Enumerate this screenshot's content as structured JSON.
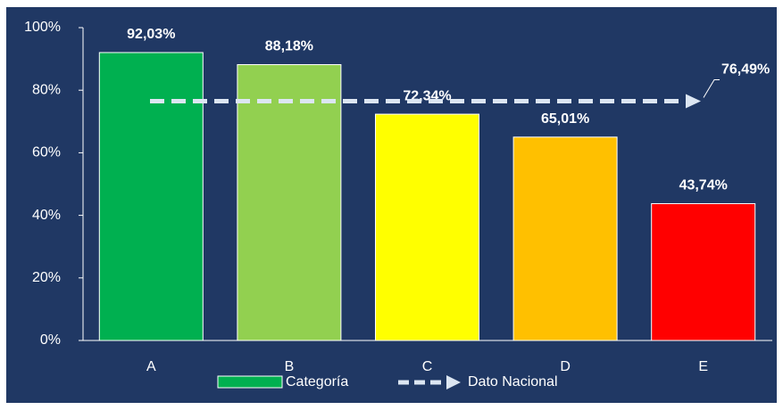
{
  "chart_data": {
    "type": "bar",
    "categories": [
      "A",
      "B",
      "C",
      "D",
      "E"
    ],
    "series": [
      {
        "name": "Categoría",
        "color": "#00b050",
        "colors": [
          "#00b050",
          "#92d050",
          "#ffff00",
          "#ffc000",
          "#ff0000"
        ],
        "values": [
          92.03,
          88.18,
          72.34,
          65.01,
          43.74
        ],
        "value_labels": [
          "92,03%",
          "88,18%",
          "72,34%",
          "65,01%",
          "43,74%"
        ]
      }
    ],
    "reference": {
      "name": "Dato Nacional",
      "value": 76.49,
      "value_label": "76,49%",
      "color": "#dce6f2"
    },
    "ylim": [
      0,
      100
    ],
    "yticks": [
      {
        "value": 0,
        "label": "0%"
      },
      {
        "value": 20,
        "label": "20%"
      },
      {
        "value": 40,
        "label": "40%"
      },
      {
        "value": 60,
        "label": "60%"
      },
      {
        "value": 80,
        "label": "80%"
      },
      {
        "value": 100,
        "label": "100%"
      }
    ]
  }
}
